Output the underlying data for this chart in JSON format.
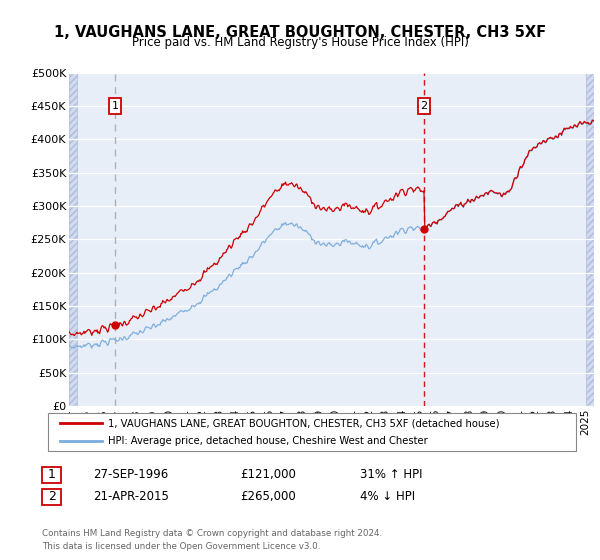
{
  "title": "1, VAUGHANS LANE, GREAT BOUGHTON, CHESTER, CH3 5XF",
  "subtitle": "Price paid vs. HM Land Registry's House Price Index (HPI)",
  "ylim": [
    0,
    500000
  ],
  "yticks": [
    0,
    50000,
    100000,
    150000,
    200000,
    250000,
    300000,
    350000,
    400000,
    450000,
    500000
  ],
  "ytick_labels": [
    "£0",
    "£50K",
    "£100K",
    "£150K",
    "£200K",
    "£250K",
    "£300K",
    "£350K",
    "£400K",
    "£450K",
    "£500K"
  ],
  "background_color": "#e8eef8",
  "grid_color": "#ffffff",
  "red_line_color": "#cc0000",
  "blue_line_color": "#7aacdc",
  "sale1_year": 1996.75,
  "sale1_price": 121000,
  "sale2_year": 2015.3,
  "sale2_price": 265000,
  "vline1_color": "#aaaaaa",
  "vline2_color": "#cc0000",
  "legend_line1": "1, VAUGHANS LANE, GREAT BOUGHTON, CHESTER, CH3 5XF (detached house)",
  "legend_line2": "HPI: Average price, detached house, Cheshire West and Chester",
  "footer": "Contains HM Land Registry data © Crown copyright and database right 2024.\nThis data is licensed under the Open Government Licence v3.0.",
  "xmin": 1994.0,
  "xmax": 2025.5,
  "xticks": [
    1994,
    1995,
    1996,
    1997,
    1998,
    1999,
    2000,
    2001,
    2002,
    2003,
    2004,
    2005,
    2006,
    2007,
    2008,
    2009,
    2010,
    2011,
    2012,
    2013,
    2014,
    2015,
    2016,
    2017,
    2018,
    2019,
    2020,
    2021,
    2022,
    2023,
    2024,
    2025
  ],
  "hatch_left_end": 1994.5,
  "hatch_right_start": 2025.0
}
